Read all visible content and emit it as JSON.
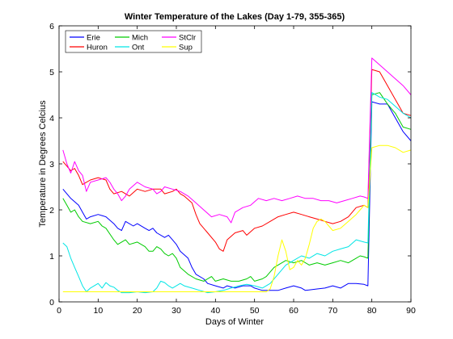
{
  "chart_data": {
    "type": "line",
    "title": "Winter Temperature of the Lakes (Day 1-79, 355-365)",
    "xlabel": "Days of Winter",
    "ylabel": "Temperature in Degrees Celcius",
    "xlim": [
      0,
      90
    ],
    "ylim": [
      0,
      6
    ],
    "xticks": [
      0,
      10,
      20,
      30,
      40,
      50,
      60,
      70,
      80,
      90
    ],
    "yticks": [
      0,
      1,
      2,
      3,
      4,
      5,
      6
    ],
    "grid": false,
    "legend_placement": "top-left",
    "series": [
      {
        "name": "Erie",
        "color": "#0000ff",
        "points": [
          [
            1,
            2.45
          ],
          [
            3,
            2.25
          ],
          [
            5,
            2.1
          ],
          [
            6,
            1.95
          ],
          [
            7,
            1.8
          ],
          [
            8,
            1.85
          ],
          [
            10,
            1.9
          ],
          [
            12,
            1.85
          ],
          [
            14,
            1.7
          ],
          [
            15,
            1.6
          ],
          [
            16,
            1.55
          ],
          [
            17,
            1.75
          ],
          [
            19,
            1.65
          ],
          [
            20,
            1.7
          ],
          [
            22,
            1.6
          ],
          [
            23,
            1.55
          ],
          [
            24,
            1.6
          ],
          [
            25,
            1.5
          ],
          [
            27,
            1.4
          ],
          [
            28,
            1.45
          ],
          [
            29,
            1.35
          ],
          [
            30,
            1.25
          ],
          [
            31,
            1.1
          ],
          [
            33,
            0.95
          ],
          [
            34,
            0.75
          ],
          [
            35,
            0.6
          ],
          [
            37,
            0.5
          ],
          [
            38,
            0.4
          ],
          [
            40,
            0.35
          ],
          [
            42,
            0.3
          ],
          [
            43,
            0.35
          ],
          [
            45,
            0.3
          ],
          [
            47,
            0.35
          ],
          [
            49,
            0.35
          ],
          [
            50,
            0.3
          ],
          [
            52,
            0.25
          ],
          [
            54,
            0.25
          ],
          [
            56,
            0.25
          ],
          [
            58,
            0.3
          ],
          [
            60,
            0.35
          ],
          [
            62,
            0.3
          ],
          [
            63,
            0.25
          ],
          [
            66,
            0.28
          ],
          [
            68,
            0.3
          ],
          [
            70,
            0.35
          ],
          [
            72,
            0.3
          ],
          [
            74,
            0.4
          ],
          [
            76,
            0.4
          ],
          [
            78,
            0.38
          ],
          [
            79,
            0.35
          ],
          [
            80,
            4.35
          ],
          [
            82,
            4.3
          ],
          [
            84,
            4.3
          ],
          [
            86,
            4.0
          ],
          [
            88,
            3.7
          ],
          [
            90,
            3.5
          ]
        ]
      },
      {
        "name": "Huron",
        "color": "#ff0000",
        "points": [
          [
            1,
            3.05
          ],
          [
            2,
            2.95
          ],
          [
            3,
            2.85
          ],
          [
            4,
            2.9
          ],
          [
            5,
            2.75
          ],
          [
            6,
            2.55
          ],
          [
            7,
            2.6
          ],
          [
            8,
            2.65
          ],
          [
            10,
            2.7
          ],
          [
            12,
            2.65
          ],
          [
            13,
            2.45
          ],
          [
            14,
            2.35
          ],
          [
            16,
            2.4
          ],
          [
            18,
            2.3
          ],
          [
            20,
            2.45
          ],
          [
            22,
            2.4
          ],
          [
            24,
            2.45
          ],
          [
            26,
            2.45
          ],
          [
            27,
            2.35
          ],
          [
            29,
            2.4
          ],
          [
            30,
            2.45
          ],
          [
            31,
            2.35
          ],
          [
            32,
            2.3
          ],
          [
            34,
            2.15
          ],
          [
            35,
            1.9
          ],
          [
            36,
            1.7
          ],
          [
            38,
            1.5
          ],
          [
            40,
            1.3
          ],
          [
            41,
            1.15
          ],
          [
            42,
            1.1
          ],
          [
            43,
            1.35
          ],
          [
            45,
            1.5
          ],
          [
            47,
            1.55
          ],
          [
            48,
            1.45
          ],
          [
            50,
            1.6
          ],
          [
            52,
            1.65
          ],
          [
            54,
            1.75
          ],
          [
            56,
            1.85
          ],
          [
            58,
            1.9
          ],
          [
            60,
            1.95
          ],
          [
            62,
            1.9
          ],
          [
            64,
            1.85
          ],
          [
            66,
            1.8
          ],
          [
            68,
            1.75
          ],
          [
            70,
            1.7
          ],
          [
            72,
            1.75
          ],
          [
            74,
            1.85
          ],
          [
            76,
            2.05
          ],
          [
            78,
            2.1
          ],
          [
            79,
            2.05
          ],
          [
            80,
            5.05
          ],
          [
            82,
            5.0
          ],
          [
            84,
            4.7
          ],
          [
            86,
            4.4
          ],
          [
            88,
            4.1
          ],
          [
            90,
            4.05
          ]
        ]
      },
      {
        "name": "Mich",
        "color": "#00cc00",
        "points": [
          [
            1,
            2.25
          ],
          [
            2,
            2.1
          ],
          [
            3,
            1.95
          ],
          [
            4,
            2.0
          ],
          [
            5,
            1.85
          ],
          [
            6,
            1.75
          ],
          [
            8,
            1.7
          ],
          [
            10,
            1.75
          ],
          [
            11,
            1.65
          ],
          [
            12,
            1.6
          ],
          [
            14,
            1.35
          ],
          [
            15,
            1.25
          ],
          [
            17,
            1.35
          ],
          [
            18,
            1.25
          ],
          [
            20,
            1.3
          ],
          [
            22,
            1.2
          ],
          [
            23,
            1.1
          ],
          [
            24,
            1.1
          ],
          [
            25,
            1.2
          ],
          [
            26,
            1.15
          ],
          [
            27,
            1.05
          ],
          [
            28,
            1.0
          ],
          [
            29,
            1.05
          ],
          [
            30,
            0.95
          ],
          [
            31,
            0.75
          ],
          [
            33,
            0.6
          ],
          [
            35,
            0.5
          ],
          [
            37,
            0.45
          ],
          [
            39,
            0.55
          ],
          [
            40,
            0.45
          ],
          [
            42,
            0.5
          ],
          [
            44,
            0.45
          ],
          [
            46,
            0.45
          ],
          [
            48,
            0.5
          ],
          [
            49,
            0.55
          ],
          [
            50,
            0.45
          ],
          [
            52,
            0.5
          ],
          [
            53,
            0.55
          ],
          [
            54,
            0.65
          ],
          [
            55,
            0.75
          ],
          [
            57,
            0.85
          ],
          [
            58,
            0.9
          ],
          [
            60,
            0.85
          ],
          [
            62,
            0.9
          ],
          [
            64,
            0.8
          ],
          [
            66,
            0.85
          ],
          [
            68,
            0.8
          ],
          [
            70,
            0.85
          ],
          [
            72,
            0.9
          ],
          [
            74,
            0.85
          ],
          [
            76,
            0.95
          ],
          [
            77,
            1.0
          ],
          [
            78,
            0.98
          ],
          [
            79,
            0.95
          ],
          [
            80,
            4.5
          ],
          [
            82,
            4.55
          ],
          [
            84,
            4.3
          ],
          [
            86,
            4.1
          ],
          [
            88,
            3.8
          ],
          [
            90,
            3.75
          ]
        ]
      },
      {
        "name": "Ont",
        "color": "#00e5e5",
        "points": [
          [
            1,
            1.28
          ],
          [
            2,
            1.2
          ],
          [
            3,
            0.95
          ],
          [
            4,
            0.75
          ],
          [
            5,
            0.55
          ],
          [
            6,
            0.35
          ],
          [
            7,
            0.22
          ],
          [
            8,
            0.3
          ],
          [
            9,
            0.35
          ],
          [
            10,
            0.4
          ],
          [
            11,
            0.3
          ],
          [
            12,
            0.42
          ],
          [
            13,
            0.35
          ],
          [
            14,
            0.32
          ],
          [
            15,
            0.25
          ],
          [
            16,
            0.2
          ],
          [
            18,
            0.2
          ],
          [
            20,
            0.22
          ],
          [
            22,
            0.2
          ],
          [
            24,
            0.22
          ],
          [
            25,
            0.3
          ],
          [
            26,
            0.45
          ],
          [
            27,
            0.42
          ],
          [
            28,
            0.35
          ],
          [
            29,
            0.3
          ],
          [
            30,
            0.35
          ],
          [
            31,
            0.4
          ],
          [
            32,
            0.35
          ],
          [
            34,
            0.3
          ],
          [
            36,
            0.25
          ],
          [
            38,
            0.2
          ],
          [
            40,
            0.22
          ],
          [
            42,
            0.25
          ],
          [
            44,
            0.3
          ],
          [
            46,
            0.35
          ],
          [
            48,
            0.38
          ],
          [
            50,
            0.35
          ],
          [
            52,
            0.3
          ],
          [
            54,
            0.4
          ],
          [
            56,
            0.6
          ],
          [
            58,
            0.8
          ],
          [
            60,
            0.9
          ],
          [
            62,
            1.0
          ],
          [
            64,
            0.95
          ],
          [
            66,
            1.05
          ],
          [
            68,
            1.0
          ],
          [
            70,
            1.1
          ],
          [
            72,
            1.15
          ],
          [
            74,
            1.2
          ],
          [
            76,
            1.35
          ],
          [
            78,
            1.3
          ],
          [
            79,
            1.28
          ],
          [
            80,
            4.55
          ],
          [
            82,
            4.45
          ],
          [
            84,
            4.4
          ],
          [
            86,
            4.25
          ],
          [
            88,
            4.1
          ],
          [
            90,
            4.0
          ]
        ]
      },
      {
        "name": "StClr",
        "color": "#ff00ff",
        "points": [
          [
            1,
            3.3
          ],
          [
            2,
            3.0
          ],
          [
            3,
            2.8
          ],
          [
            4,
            3.05
          ],
          [
            5,
            2.85
          ],
          [
            6,
            2.75
          ],
          [
            7,
            2.4
          ],
          [
            8,
            2.6
          ],
          [
            10,
            2.65
          ],
          [
            12,
            2.7
          ],
          [
            13,
            2.6
          ],
          [
            14,
            2.45
          ],
          [
            15,
            2.35
          ],
          [
            16,
            2.2
          ],
          [
            17,
            2.3
          ],
          [
            18,
            2.45
          ],
          [
            20,
            2.6
          ],
          [
            22,
            2.5
          ],
          [
            24,
            2.45
          ],
          [
            25,
            2.35
          ],
          [
            26,
            2.4
          ],
          [
            27,
            2.5
          ],
          [
            29,
            2.45
          ],
          [
            31,
            2.4
          ],
          [
            33,
            2.3
          ],
          [
            35,
            2.15
          ],
          [
            37,
            2.0
          ],
          [
            39,
            1.85
          ],
          [
            41,
            1.9
          ],
          [
            43,
            1.85
          ],
          [
            44,
            1.72
          ],
          [
            45,
            1.95
          ],
          [
            47,
            2.05
          ],
          [
            49,
            2.1
          ],
          [
            51,
            2.25
          ],
          [
            53,
            2.2
          ],
          [
            55,
            2.25
          ],
          [
            57,
            2.2
          ],
          [
            59,
            2.25
          ],
          [
            61,
            2.3
          ],
          [
            63,
            2.25
          ],
          [
            65,
            2.25
          ],
          [
            67,
            2.2
          ],
          [
            69,
            2.2
          ],
          [
            71,
            2.15
          ],
          [
            73,
            2.2
          ],
          [
            75,
            2.25
          ],
          [
            77,
            2.3
          ],
          [
            78,
            2.28
          ],
          [
            79,
            2.25
          ],
          [
            80,
            5.3
          ],
          [
            82,
            5.15
          ],
          [
            84,
            5.0
          ],
          [
            86,
            4.85
          ],
          [
            88,
            4.7
          ],
          [
            90,
            4.5
          ]
        ]
      },
      {
        "name": "Sup",
        "color": "#ffff00",
        "points": [
          [
            1,
            0.22
          ],
          [
            5,
            0.22
          ],
          [
            10,
            0.22
          ],
          [
            15,
            0.22
          ],
          [
            20,
            0.22
          ],
          [
            25,
            0.22
          ],
          [
            30,
            0.22
          ],
          [
            35,
            0.22
          ],
          [
            40,
            0.22
          ],
          [
            45,
            0.22
          ],
          [
            50,
            0.22
          ],
          [
            53,
            0.22
          ],
          [
            54,
            0.28
          ],
          [
            55,
            0.55
          ],
          [
            56,
            1.0
          ],
          [
            57,
            1.35
          ],
          [
            58,
            1.1
          ],
          [
            59,
            0.7
          ],
          [
            60,
            0.75
          ],
          [
            61,
            0.9
          ],
          [
            62,
            0.8
          ],
          [
            63,
            0.95
          ],
          [
            64,
            1.25
          ],
          [
            65,
            1.6
          ],
          [
            66,
            1.75
          ],
          [
            67,
            1.8
          ],
          [
            68,
            1.75
          ],
          [
            69,
            1.65
          ],
          [
            70,
            1.55
          ],
          [
            72,
            1.6
          ],
          [
            74,
            1.75
          ],
          [
            76,
            1.9
          ],
          [
            77,
            2.0
          ],
          [
            78,
            2.1
          ],
          [
            79,
            2.05
          ],
          [
            80,
            3.35
          ],
          [
            82,
            3.4
          ],
          [
            84,
            3.4
          ],
          [
            86,
            3.35
          ],
          [
            88,
            3.25
          ],
          [
            90,
            3.3
          ]
        ]
      }
    ]
  }
}
